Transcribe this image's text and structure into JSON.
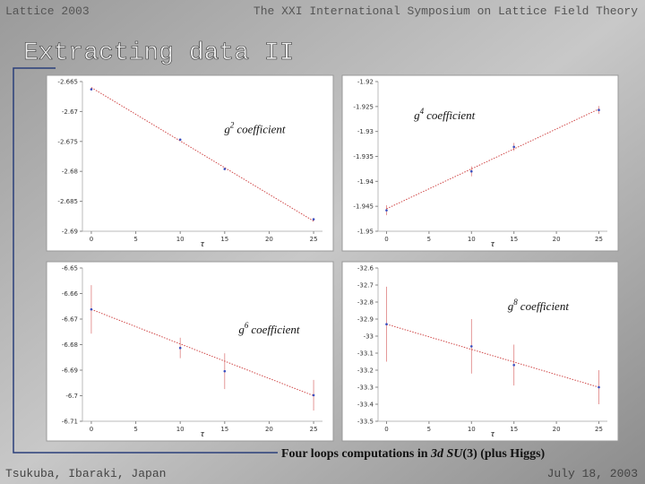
{
  "header": {
    "left": "Lattice 2003",
    "right": "The XXI International Symposium on Lattice Field Theory"
  },
  "title": "Extracting data II",
  "caption": {
    "start": "Four loops computations in",
    "italic": "3d SU",
    "paren": "(3)",
    "end": "(plus Higgs)"
  },
  "footer": {
    "left": "Tsukuba, Ibaraki, Japan",
    "right": "July 18, 2003"
  },
  "chart_data": [
    {
      "type": "scatter",
      "annotation": {
        "base": "g",
        "power": "2",
        "text": "coefficient"
      },
      "xlabel": "τ",
      "x": [
        0,
        10,
        15,
        25
      ],
      "values": [
        -2.6663,
        -2.6747,
        -2.6796,
        -2.688
      ],
      "errors": [
        0.0002,
        0.0002,
        0.0002,
        0.0002
      ],
      "fit": {
        "x": [
          0,
          25
        ],
        "values": [
          -2.666,
          -2.6883
        ]
      },
      "xlim": [
        -1,
        26
      ],
      "ylim": [
        -2.69,
        -2.665
      ],
      "xticks": [
        0,
        5,
        10,
        15,
        20,
        25
      ],
      "yticks": [
        -2.665,
        -2.67,
        -2.675,
        -2.68,
        -2.685,
        -2.69
      ],
      "color": "#3a4fc0",
      "fit_color": "#d04848"
    },
    {
      "type": "scatter",
      "annotation": {
        "base": "g",
        "power": "4",
        "text": "coefficient"
      },
      "xlabel": "τ",
      "x": [
        0,
        10,
        15,
        25
      ],
      "values": [
        -1.9458,
        -1.938,
        -1.9331,
        -1.9257
      ],
      "errors": [
        0.001,
        0.001,
        0.0008,
        0.0008
      ],
      "fit": {
        "x": [
          0,
          25
        ],
        "values": [
          -1.9455,
          -1.9255
        ]
      },
      "xlim": [
        -1,
        26
      ],
      "ylim": [
        -1.95,
        -1.92
      ],
      "xticks": [
        0,
        5,
        10,
        15,
        20,
        25
      ],
      "yticks": [
        -1.92,
        -1.925,
        -1.93,
        -1.935,
        -1.94,
        -1.945,
        -1.95
      ],
      "color": "#3a4fc0",
      "fit_color": "#d04848"
    },
    {
      "type": "scatter",
      "annotation": {
        "base": "g",
        "power": "6",
        "text": "coefficient"
      },
      "xlabel": "τ",
      "x": [
        0,
        10,
        15,
        25
      ],
      "values": [
        -6.6662,
        -6.6813,
        -6.6904,
        -6.6998
      ],
      "errors": [
        0.0095,
        0.004,
        0.007,
        0.006
      ],
      "fit": {
        "x": [
          0,
          25
        ],
        "values": [
          -6.6662,
          -6.7
        ]
      },
      "xlim": [
        -1,
        26
      ],
      "ylim": [
        -6.71,
        -6.65
      ],
      "xticks": [
        0,
        5,
        10,
        15,
        20,
        25
      ],
      "yticks": [
        -6.65,
        -6.66,
        -6.67,
        -6.68,
        -6.69,
        -6.7,
        -6.71
      ],
      "color": "#3a4fc0",
      "fit_color": "#d04848"
    },
    {
      "type": "scatter",
      "annotation": {
        "base": "g",
        "power": "8",
        "text": "coefficient"
      },
      "xlabel": "τ",
      "x": [
        0,
        10,
        15,
        25
      ],
      "values": [
        -32.93,
        -33.06,
        -33.17,
        -33.3
      ],
      "errors": [
        0.22,
        0.16,
        0.12,
        0.1
      ],
      "fit": {
        "x": [
          0,
          25
        ],
        "values": [
          -32.93,
          -33.3
        ]
      },
      "xlim": [
        -1,
        26
      ],
      "ylim": [
        -33.5,
        -32.6
      ],
      "xticks": [
        0,
        5,
        10,
        15,
        20,
        25
      ],
      "yticks": [
        -32.6,
        -32.7,
        -32.8,
        -32.9,
        -33,
        -33.1,
        -33.2,
        -33.3,
        -33.4,
        -33.5
      ],
      "color": "#3a4fc0",
      "fit_color": "#d04848"
    }
  ]
}
